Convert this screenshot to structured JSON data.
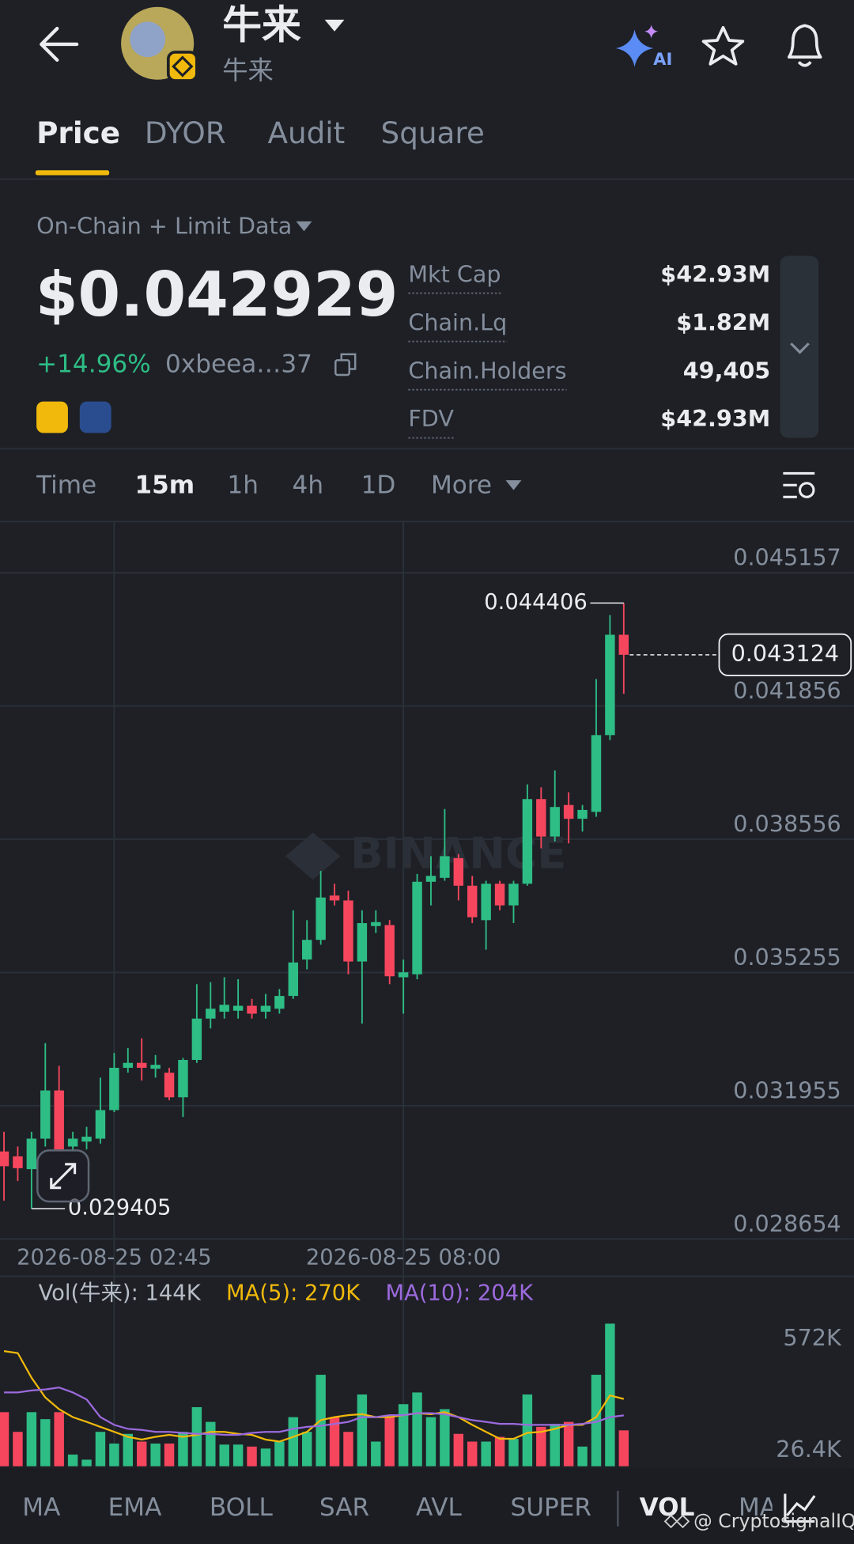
{
  "header": {
    "title": "牛来",
    "subtitle": "牛来",
    "ai_label": "AI"
  },
  "tabs": [
    "Price",
    "DYOR",
    "Audit",
    "Square"
  ],
  "data_source": "On-Chain + Limit Data",
  "price": "$0.042929",
  "change": "+14.96%",
  "address": "0xbeea…37",
  "stats": [
    {
      "label": "Mkt Cap",
      "value": "$42.93M"
    },
    {
      "label": "Chain.Lq",
      "value": "$1.82M"
    },
    {
      "label": "Chain.Holders",
      "value": "49,405"
    },
    {
      "label": "FDV",
      "value": "$42.93M"
    }
  ],
  "intervals": [
    "Time",
    "15m",
    "1h",
    "4h",
    "1D",
    "More"
  ],
  "watermark": "BINANCE",
  "chart_data": [
    {
      "type": "candlestick",
      "up_color": "#2ebd85",
      "down_color": "#f6465d",
      "categories": [
        null,
        null,
        null,
        null,
        null,
        null,
        null,
        null,
        "2026-08-25 02:45",
        null,
        null,
        null,
        null,
        null,
        null,
        null,
        null,
        null,
        null,
        null,
        null,
        null,
        null,
        null,
        null,
        null,
        null,
        null,
        null,
        "2026-08-25 08:00",
        null,
        null,
        null,
        null,
        null,
        null,
        null,
        null,
        null,
        null,
        null,
        null,
        null,
        null,
        null,
        null
      ],
      "open": [
        0.030822,
        0.0307,
        0.030383,
        0.031139,
        0.032333,
        0.030944,
        0.031066,
        0.031139,
        0.031846,
        0.032894,
        0.033016,
        0.03287,
        0.032772,
        0.032163,
        0.033089,
        0.034113,
        0.034284,
        0.034308,
        0.03443,
        0.034284,
        0.034357,
        0.034674,
        0.035576,
        0.036063,
        0.037161,
        0.037039,
        0.035527,
        0.036405,
        0.036429,
        0.035137,
        0.03521,
        0.037502,
        0.037599,
        0.038087,
        0.037404,
        0.036551,
        0.037453,
        0.036917,
        0.037453,
        0.03955,
        0.038623,
        0.039404,
        0.039062,
        0.039233,
        0.041135,
        0.043621
      ],
      "high": [
        0.031309,
        0.030944,
        0.031309,
        0.033504,
        0.032943,
        0.031309,
        0.031431,
        0.03265,
        0.03326,
        0.033382,
        0.033625,
        0.033211,
        0.032894,
        0.033138,
        0.034966,
        0.035015,
        0.035137,
        0.035088,
        0.034601,
        0.034723,
        0.034844,
        0.036795,
        0.036551,
        0.03777,
        0.037453,
        0.037282,
        0.036795,
        0.036795,
        0.036551,
        0.035576,
        0.037697,
        0.038136,
        0.039306,
        0.038185,
        0.037648,
        0.037526,
        0.037526,
        0.037526,
        0.039916,
        0.039842,
        0.040257,
        0.03972,
        0.039404,
        0.042524,
        0.044109,
        0.044406
      ],
      "low": [
        0.029603,
        0.03009,
        0.029405,
        0.030944,
        0.030822,
        0.030822,
        0.030871,
        0.031017,
        0.031797,
        0.032772,
        0.032577,
        0.03265,
        0.03209,
        0.031675,
        0.033016,
        0.033869,
        0.034113,
        0.034113,
        0.034113,
        0.034113,
        0.034235,
        0.034601,
        0.035332,
        0.035942,
        0.036917,
        0.03521,
        0.033991,
        0.036234,
        0.034966,
        0.034235,
        0.035088,
        0.036917,
        0.037526,
        0.037039,
        0.036478,
        0.03582,
        0.036795,
        0.036478,
        0.037404,
        0.038331,
        0.038501,
        0.038453,
        0.038745,
        0.039111,
        0.041013,
        0.042158
      ],
      "close": [
        0.030456,
        0.030407,
        0.031139,
        0.032333,
        0.030871,
        0.031139,
        0.031187,
        0.031846,
        0.032894,
        0.033016,
        0.032894,
        0.032967,
        0.032163,
        0.033089,
        0.034113,
        0.034357,
        0.034454,
        0.03443,
        0.034235,
        0.03443,
        0.034674,
        0.035503,
        0.036063,
        0.037112,
        0.037039,
        0.035527,
        0.036478,
        0.036502,
        0.035161,
        0.035259,
        0.037502,
        0.037648,
        0.038136,
        0.037404,
        0.036624,
        0.037453,
        0.036917,
        0.037453,
        0.03955,
        0.038623,
        0.039355,
        0.039062,
        0.039282,
        0.041135,
        0.043621,
        0.043124
      ],
      "ylim": [
        0.02863,
        0.046425
      ],
      "yticks": [
        0.045157,
        0.041856,
        0.038556,
        0.035255,
        0.031955,
        0.028654
      ],
      "grid": true
    },
    {
      "type": "bar",
      "ylim": [
        0,
        750000
      ],
      "yticks": [
        {
          "value": 572000,
          "label": "572K"
        },
        {
          "value": 26400,
          "label": "26.4K"
        }
      ],
      "series": [
        {
          "type": "bar",
          "legend": "Vol(牛来): 144K",
          "values": [
            217000,
            138000,
            217000,
            189000,
            217000,
            47000,
            26400,
            138000,
            91000,
            130000,
            99000,
            91000,
            91000,
            138000,
            237000,
            178000,
            87000,
            87000,
            79000,
            71000,
            99000,
            197000,
            138000,
            367000,
            197000,
            138000,
            288000,
            99000,
            197000,
            249000,
            296000,
            197000,
            229000,
            130000,
            99000,
            99000,
            118000,
            110000,
            288000,
            158000,
            170000,
            178000,
            79000,
            367000,
            572000,
            144000
          ]
        },
        {
          "type": "line",
          "legend": "MA(5): 270K",
          "color": "#f0b90b",
          "values": [
            462000,
            454000,
            355000,
            276000,
            229000,
            197000,
            178000,
            158000,
            138000,
            118000,
            107000,
            118000,
            126000,
            118000,
            126000,
            138000,
            138000,
            130000,
            126000,
            107000,
            99000,
            118000,
            138000,
            185000,
            197000,
            205000,
            209000,
            197000,
            197000,
            205000,
            213000,
            209000,
            217000,
            197000,
            166000,
            138000,
            110000,
            110000,
            134000,
            138000,
            150000,
            166000,
            166000,
            197000,
            284000,
            270000
          ]
        },
        {
          "type": "line",
          "legend": "MA(10): 204K",
          "color": "#9c6ade",
          "values": [
            296000,
            296000,
            304000,
            308000,
            316000,
            296000,
            268000,
            197000,
            166000,
            150000,
            146000,
            138000,
            138000,
            134000,
            130000,
            130000,
            126000,
            126000,
            134000,
            138000,
            138000,
            150000,
            158000,
            162000,
            170000,
            178000,
            197000,
            197000,
            205000,
            205000,
            213000,
            213000,
            209000,
            197000,
            185000,
            178000,
            170000,
            170000,
            166000,
            166000,
            166000,
            166000,
            170000,
            178000,
            197000,
            204000
          ]
        }
      ]
    }
  ],
  "indicators": [
    "MA",
    "EMA",
    "BOLL",
    "SAR",
    "AVL",
    "SUPER",
    "VOL",
    "MA"
  ],
  "credit": "@ CryptosignalIQ"
}
